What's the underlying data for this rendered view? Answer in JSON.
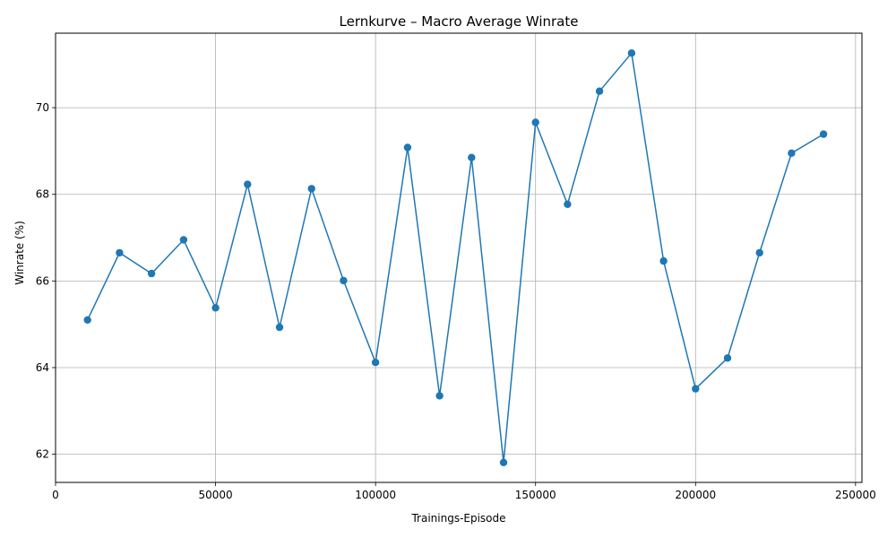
{
  "chart_data": {
    "type": "line",
    "title": "Lernkurve – Macro Average Winrate",
    "xlabel": "Trainings-Episode",
    "ylabel": "Winrate (%)",
    "xlim": [
      0,
      252000
    ],
    "ylim": [
      61.35,
      71.72
    ],
    "grid": true,
    "x_ticks": [
      0,
      50000,
      100000,
      150000,
      200000,
      250000
    ],
    "y_ticks": [
      62,
      64,
      66,
      68,
      70
    ],
    "x_tick_labels": [
      "0",
      "50000",
      "100000",
      "150000",
      "200000",
      "250000"
    ],
    "y_tick_labels": [
      "62",
      "64",
      "66",
      "68",
      "70"
    ],
    "line_color": "#1f77b4",
    "marker": "circle",
    "x": [
      10000,
      20000,
      30000,
      40000,
      50000,
      60000,
      70000,
      80000,
      90000,
      100000,
      110000,
      120000,
      130000,
      140000,
      150000,
      160000,
      170000,
      180000,
      190000,
      200000,
      210000,
      220000,
      230000,
      240000
    ],
    "y": [
      65.1,
      66.65,
      66.17,
      66.95,
      65.38,
      68.23,
      64.93,
      68.13,
      66.01,
      64.12,
      69.08,
      63.35,
      68.85,
      61.81,
      69.66,
      67.77,
      70.38,
      71.26,
      66.46,
      63.51,
      64.22,
      66.65,
      68.95,
      69.39
    ]
  }
}
